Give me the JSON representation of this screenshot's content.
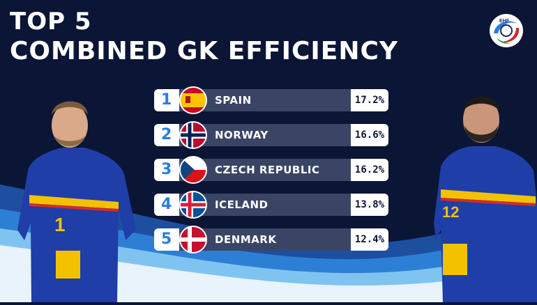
{
  "header": {
    "line1": "TOP 5",
    "line2": "COMBINED GK EFFICIENCY"
  },
  "brand": {
    "logo_text": "EHF",
    "logo_icon": "ehf-logo-icon"
  },
  "colors": {
    "background": "#0b1535",
    "accent": "#2a7de1",
    "bar_dark": "#3a4566"
  },
  "rankings": [
    {
      "rank": "1",
      "country": "SPAIN",
      "value": "17.2%",
      "flag": "spain-flag-icon"
    },
    {
      "rank": "2",
      "country": "NORWAY",
      "value": "16.6%",
      "flag": "norway-flag-icon"
    },
    {
      "rank": "3",
      "country": "CZECH REPUBLIC",
      "value": "16.2%",
      "flag": "czech-flag-icon"
    },
    {
      "rank": "4",
      "country": "ICELAND",
      "value": "13.8%",
      "flag": "iceland-flag-icon"
    },
    {
      "rank": "5",
      "country": "DENMARK",
      "value": "12.4%",
      "flag": "denmark-flag-icon"
    }
  ],
  "players": [
    {
      "name": "left-goalkeeper",
      "jersey_number": "1"
    },
    {
      "name": "right-goalkeeper",
      "jersey_number": "12"
    }
  ]
}
